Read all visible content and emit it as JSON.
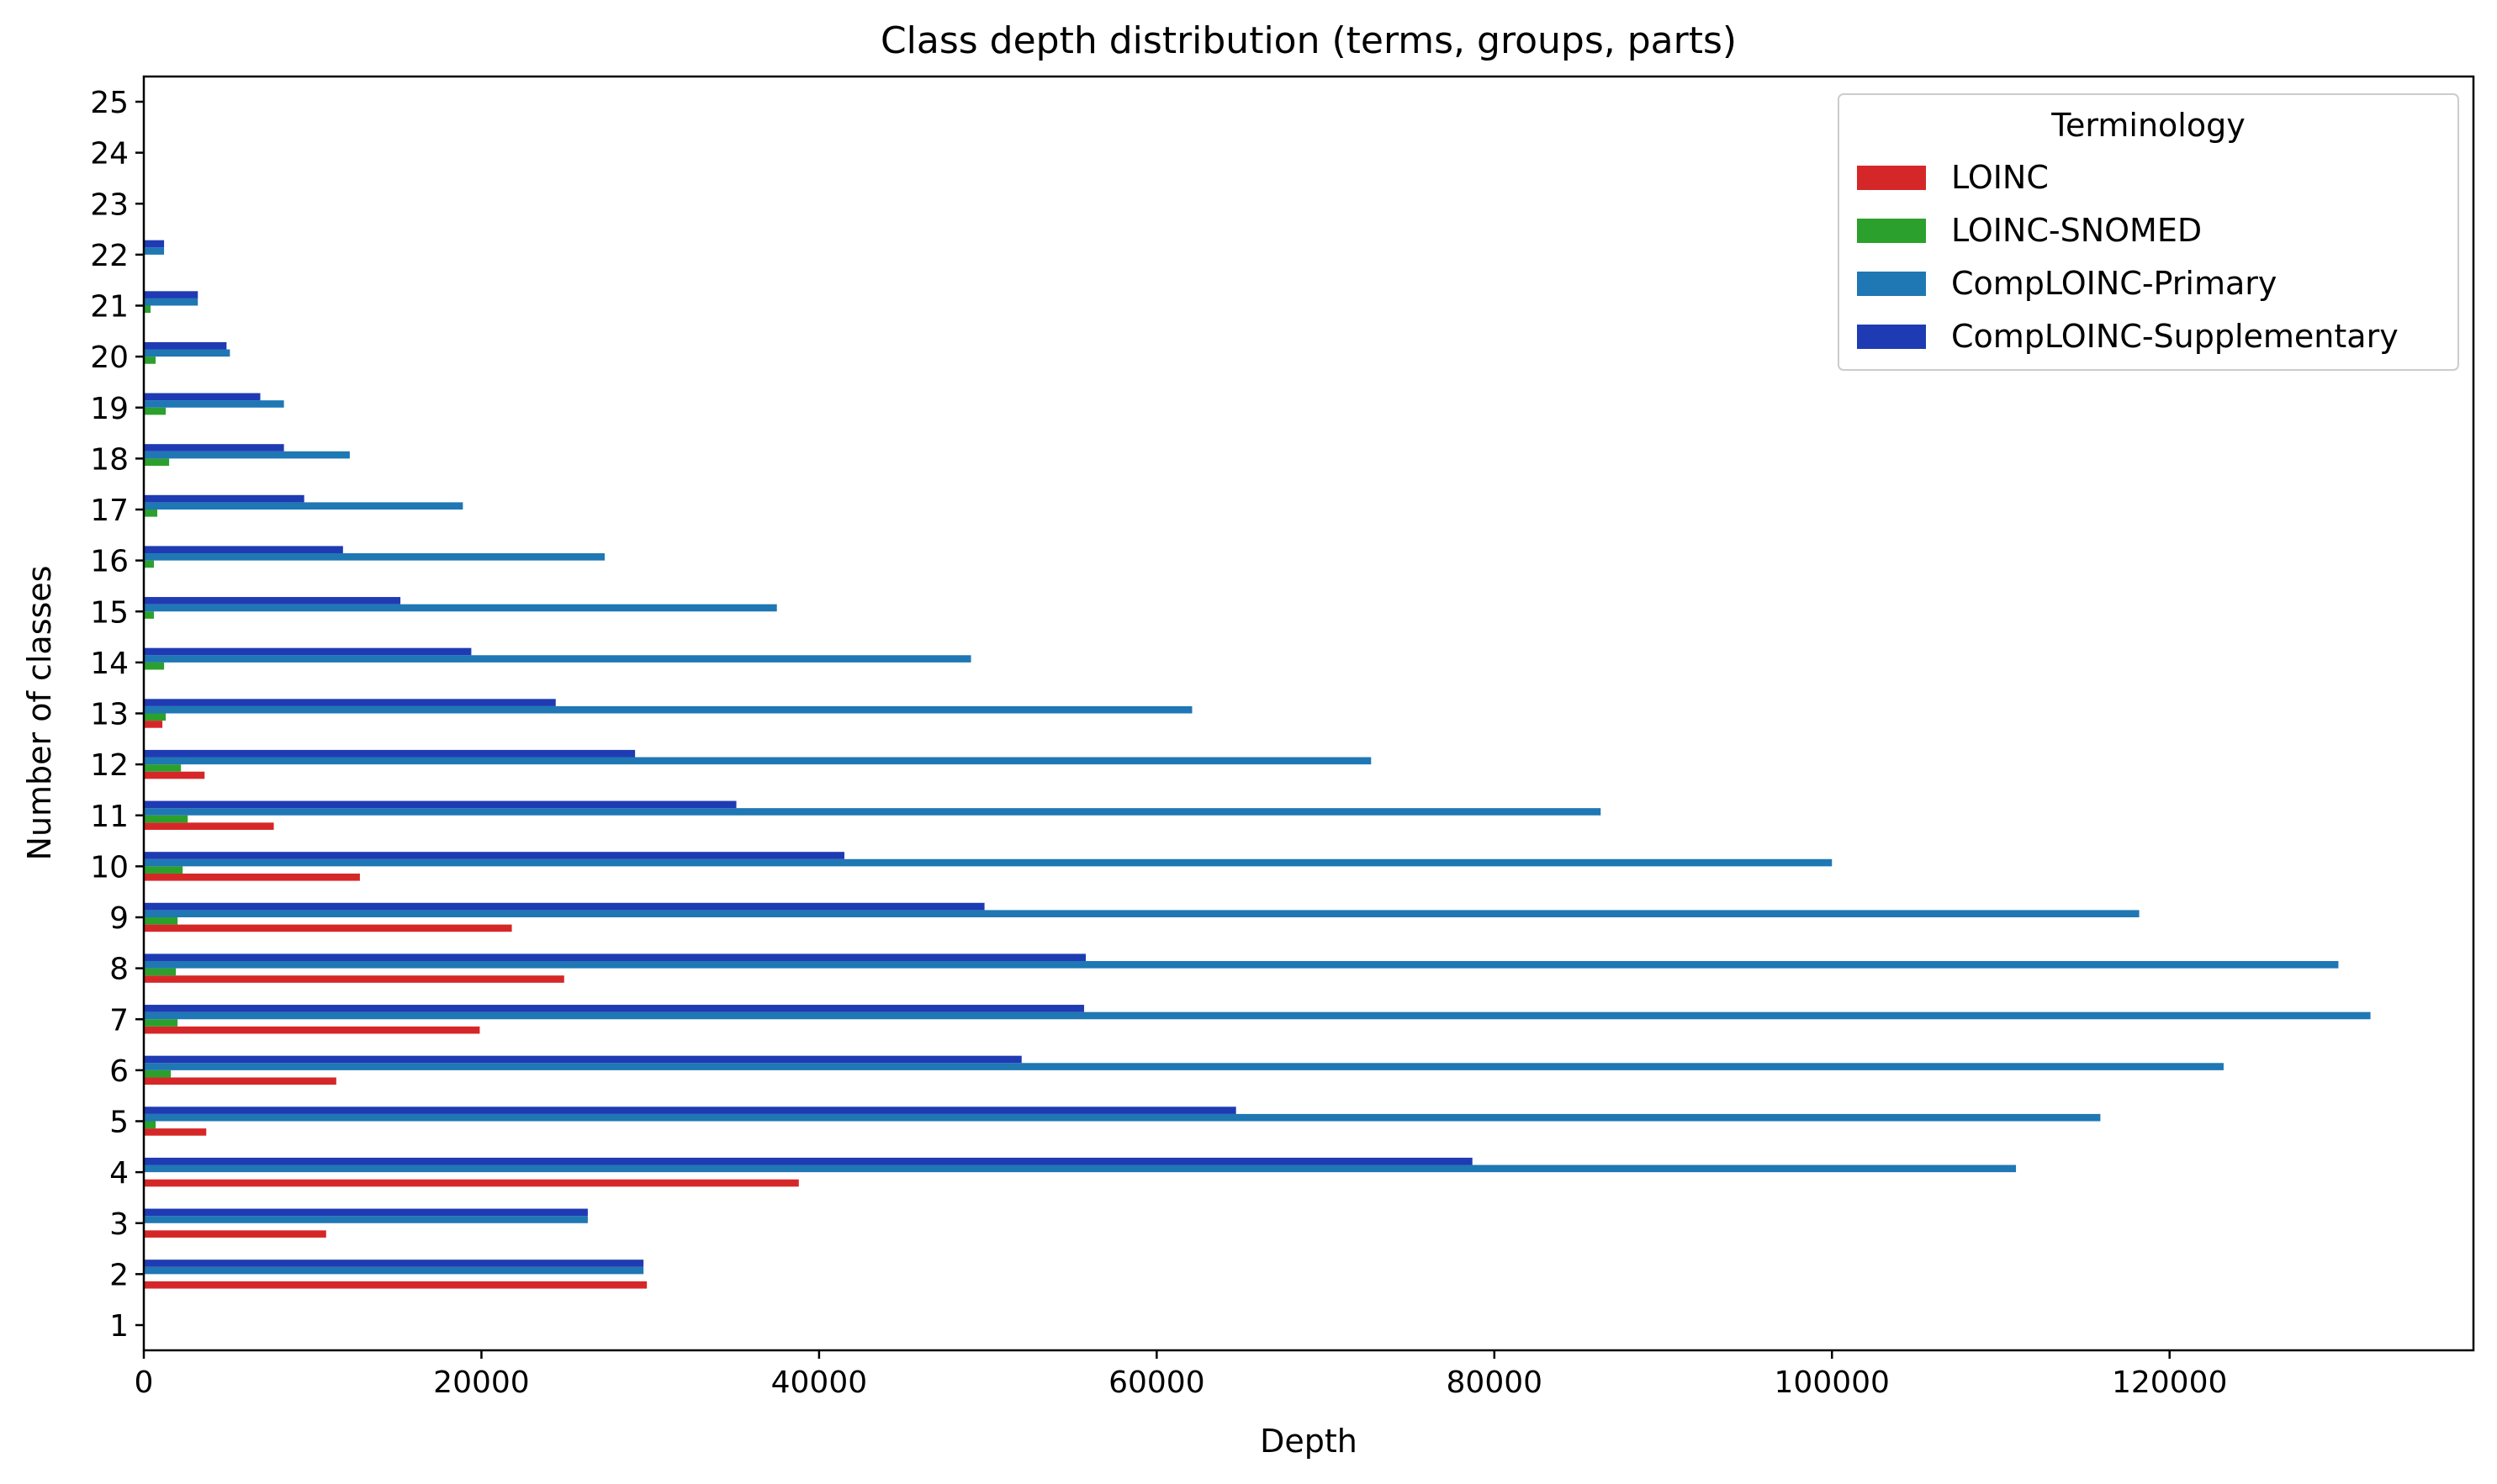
{
  "chart_data": {
    "type": "bar",
    "orientation": "horizontal",
    "title": "Class depth distribution (terms, groups, parts)",
    "xlabel": "Depth",
    "ylabel": "Number of classes",
    "xlim": [
      0,
      138000
    ],
    "x_ticks": [
      0,
      20000,
      40000,
      60000,
      80000,
      100000,
      120000
    ],
    "categories": [
      "1",
      "2",
      "3",
      "4",
      "5",
      "6",
      "7",
      "8",
      "9",
      "10",
      "11",
      "12",
      "13",
      "14",
      "15",
      "16",
      "17",
      "18",
      "19",
      "20",
      "21",
      "22",
      "23",
      "24",
      "25"
    ],
    "grid": false,
    "legend": {
      "title": "Terminology",
      "placement": "top-right"
    },
    "series": [
      {
        "name": "LOINC",
        "color": "#d62728",
        "values": [
          0,
          29800,
          10800,
          38800,
          3700,
          11400,
          19900,
          24900,
          21800,
          12800,
          7700,
          3600,
          1100,
          0,
          0,
          0,
          0,
          0,
          0,
          0,
          0,
          0,
          0,
          0,
          0
        ]
      },
      {
        "name": "LOINC-SNOMED",
        "color": "#2ca02c",
        "values": [
          0,
          0,
          0,
          0,
          700,
          1600,
          2000,
          1900,
          2000,
          2300,
          2600,
          2200,
          1300,
          1200,
          600,
          600,
          800,
          1500,
          1300,
          700,
          400,
          0,
          0,
          0,
          0
        ]
      },
      {
        "name": "CompLOINC-Primary",
        "color": "#1f77b4",
        "values": [
          0,
          29600,
          26300,
          110900,
          115900,
          123200,
          131900,
          130000,
          118200,
          100000,
          86300,
          72700,
          62100,
          49000,
          37500,
          27300,
          18900,
          12200,
          8300,
          5100,
          3200,
          1200,
          0,
          0,
          0
        ]
      },
      {
        "name": "CompLOINC-Supplementary",
        "color": "#1f3bb3",
        "values": [
          0,
          29600,
          26300,
          78700,
          64700,
          52000,
          55700,
          55800,
          49800,
          41500,
          35100,
          29100,
          24400,
          19400,
          15200,
          11800,
          9500,
          8300,
          6900,
          4900,
          3200,
          1200,
          0,
          0,
          0
        ]
      }
    ]
  }
}
